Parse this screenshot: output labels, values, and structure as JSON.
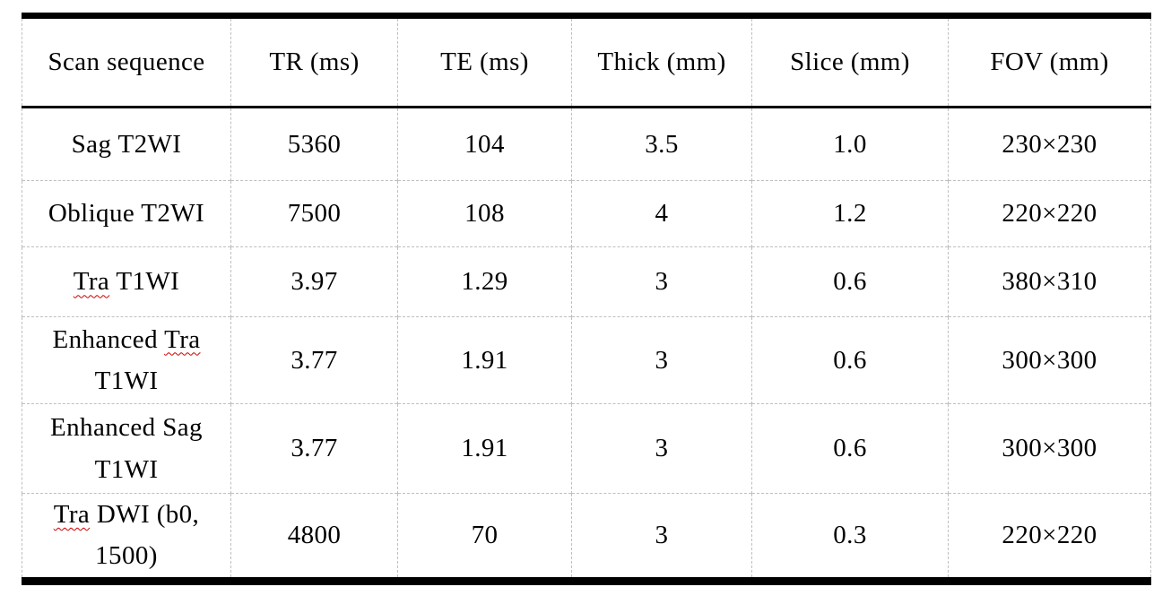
{
  "document": {
    "background": "#ffffff"
  },
  "table": {
    "columns": [
      {
        "id": "scan-sequence",
        "label": "Scan sequence"
      },
      {
        "id": "tr-ms",
        "label": "TR (ms)"
      },
      {
        "id": "te-ms",
        "label": "TE (ms)"
      },
      {
        "id": "thick-mm",
        "label": "Thick (mm)"
      },
      {
        "id": "slice-mm",
        "label": "Slice (mm)"
      },
      {
        "id": "fov-mm",
        "label": "FOV (mm)"
      }
    ],
    "rows": [
      {
        "scan_sequence": "Sag T2WI",
        "name_segments": [
          {
            "text": "Sag T2WI",
            "misspelled": false
          }
        ],
        "tr": "5360",
        "te": "104",
        "thick": "3.5",
        "slice": "1.0",
        "fov": "230×230"
      },
      {
        "scan_sequence": "Oblique T2WI",
        "name_segments": [
          {
            "text": "Oblique T2WI",
            "misspelled": false
          }
        ],
        "tr": "7500",
        "te": "108",
        "thick": "4",
        "slice": "1.2",
        "fov": "220×220"
      },
      {
        "scan_sequence": "Tra T1WI",
        "name_segments": [
          {
            "text": "Tra",
            "misspelled": true
          },
          {
            "text": " T1WI",
            "misspelled": false
          }
        ],
        "tr": "3.97",
        "te": "1.29",
        "thick": "3",
        "slice": "0.6",
        "fov": "380×310"
      },
      {
        "scan_sequence": "Enhanced Tra T1WI",
        "name_segments": [
          {
            "text": "Enhanced ",
            "misspelled": false
          },
          {
            "text": "Tra",
            "misspelled": true
          },
          {
            "text": "\nT1WI",
            "misspelled": false
          }
        ],
        "tr": "3.77",
        "te": "1.91",
        "thick": "3",
        "slice": "0.6",
        "fov": "300×300"
      },
      {
        "scan_sequence": "Enhanced Sag T1WI",
        "name_segments": [
          {
            "text": "Enhanced Sag\nT1WI",
            "misspelled": false
          }
        ],
        "tr": "3.77",
        "te": "1.91",
        "thick": "3",
        "slice": "0.6",
        "fov": "300×300"
      },
      {
        "scan_sequence": "Tra DWI (b0, 1500)",
        "name_segments": [
          {
            "text": "Tra",
            "misspelled": true
          },
          {
            "text": " DWI (b0,\n1500)",
            "misspelled": false
          }
        ],
        "tr": "4800",
        "te": "70",
        "thick": "3",
        "slice": "0.3",
        "fov": "220×220"
      }
    ]
  },
  "colors": {
    "text": "#000000",
    "heavy_border": "#000000",
    "gridline": "#bfbfbf",
    "spellcheck_underline": "#cc0000"
  }
}
